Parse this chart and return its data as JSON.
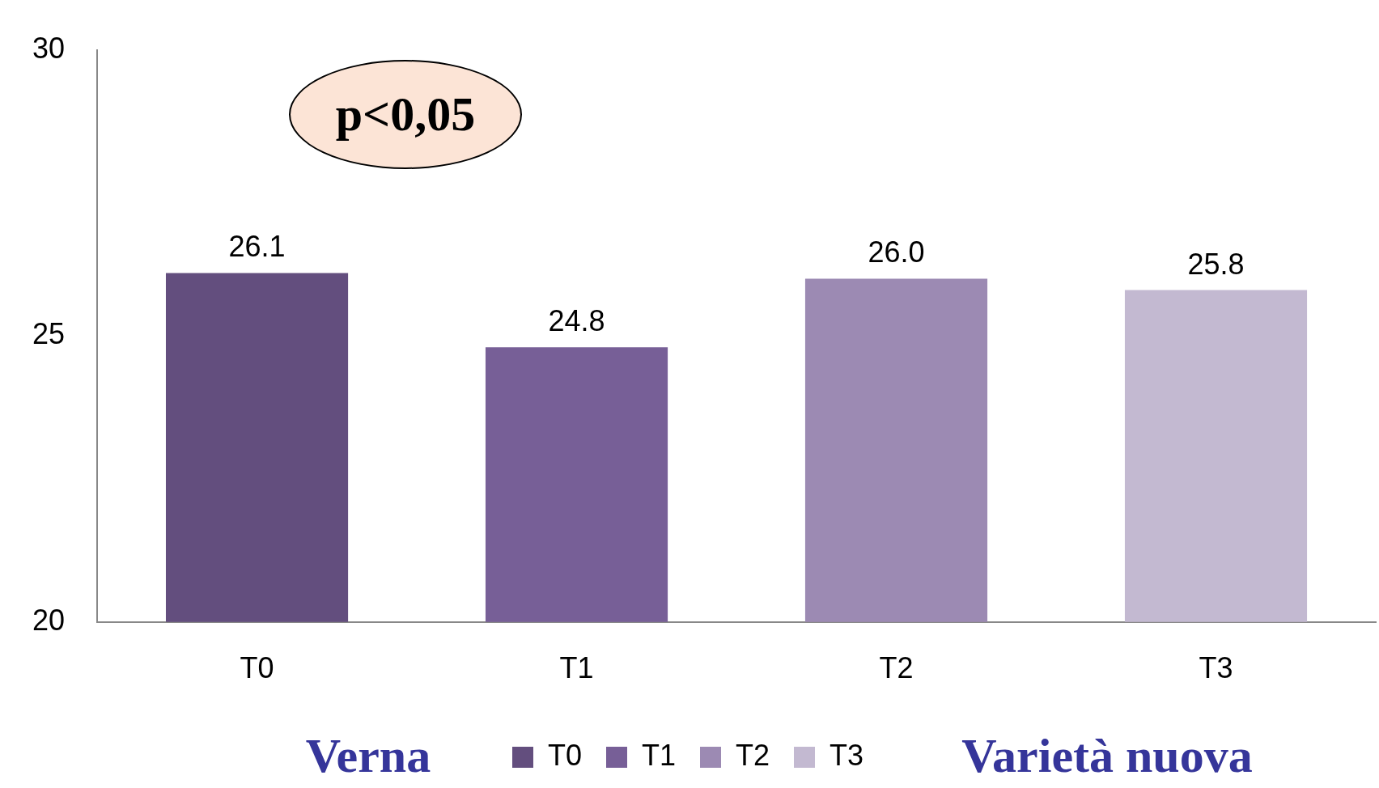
{
  "chart_data": {
    "type": "bar",
    "categories": [
      "T0",
      "T1",
      "T2",
      "T3"
    ],
    "series": [
      {
        "name": "T0",
        "color": "#634e7e",
        "values": [
          26.1,
          null,
          null,
          null
        ],
        "value_labels": [
          "26.1",
          null,
          null,
          null
        ]
      },
      {
        "name": "T1",
        "color": "#775f97",
        "values": [
          null,
          24.8,
          null,
          null
        ],
        "value_labels": [
          null,
          "24.8",
          null,
          null
        ]
      },
      {
        "name": "T2",
        "color": "#9c8ab3",
        "values": [
          null,
          null,
          26.0,
          null
        ],
        "value_labels": [
          null,
          null,
          "26.0",
          null
        ]
      },
      {
        "name": "T3",
        "color": "#c3b9d1",
        "values": [
          null,
          null,
          null,
          25.8
        ],
        "value_labels": [
          null,
          null,
          null,
          "25.8"
        ]
      }
    ],
    "ylim": [
      20,
      30
    ],
    "yticks": [
      20,
      25,
      30
    ],
    "grid": false,
    "legend": "bottom",
    "annotations": [
      "p<0,05",
      "Verna",
      "Varietà nuova"
    ]
  }
}
